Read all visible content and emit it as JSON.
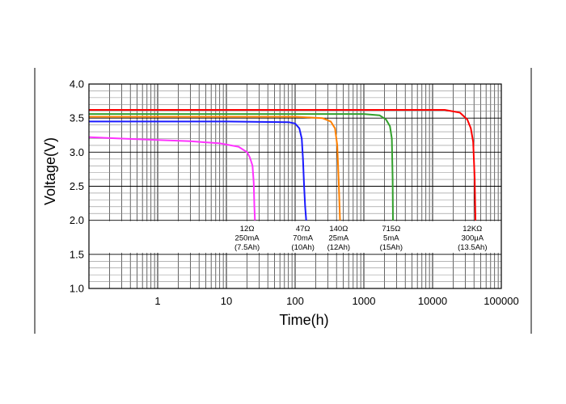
{
  "chart_data": {
    "type": "line",
    "title": "",
    "xlabel": "Time(h)",
    "ylabel": "Voltage(V)",
    "xscale": "log",
    "xlim": [
      0.1,
      100000
    ],
    "ylim": [
      1.0,
      4.0
    ],
    "xticks": [
      1,
      10,
      100,
      1000,
      10000,
      100000
    ],
    "xtick_labels": [
      "1",
      "10",
      "100",
      "1000",
      "10000",
      "100000"
    ],
    "yticks": [
      1.0,
      1.5,
      2.0,
      2.5,
      3.0,
      3.5,
      4.0
    ],
    "ytick_labels": [
      "1.0",
      "1.5",
      "2.0",
      "2.5",
      "3.0",
      "3.5",
      "4.0"
    ],
    "grid": true,
    "legend": "none",
    "series": [
      {
        "color": "#ff33ff",
        "annotation": [
          "12Ω",
          "250mA",
          "(7.5Ah)"
        ],
        "x": [
          0.1,
          0.3,
          1,
          3,
          8,
          15,
          20,
          22,
          24,
          25,
          25.5,
          26
        ],
        "y": [
          3.22,
          3.2,
          3.18,
          3.16,
          3.13,
          3.08,
          3.0,
          2.92,
          2.8,
          2.55,
          2.2,
          2.0
        ]
      },
      {
        "color": "#1a1aff",
        "annotation": [
          "47Ω",
          "70mA",
          "(10Ah)"
        ],
        "x": [
          0.1,
          10,
          80,
          100,
          115,
          125,
          130,
          135,
          140,
          145
        ],
        "y": [
          3.45,
          3.45,
          3.44,
          3.42,
          3.35,
          3.2,
          2.9,
          2.5,
          2.2,
          2.0
        ]
      },
      {
        "color": "#ff8000",
        "annotation": [
          "140Ω",
          "25mA",
          "(12Ah)"
        ],
        "x": [
          0.1,
          100,
          250,
          330,
          380,
          410,
          430,
          450
        ],
        "y": [
          3.52,
          3.52,
          3.5,
          3.45,
          3.35,
          3.1,
          2.6,
          2.0
        ]
      },
      {
        "color": "#33a02c",
        "annotation": [
          "715Ω",
          "5mA",
          "(15Ah)"
        ],
        "x": [
          0.1,
          1000,
          1700,
          2100,
          2400,
          2550,
          2620,
          2650
        ],
        "y": [
          3.56,
          3.56,
          3.54,
          3.48,
          3.38,
          3.2,
          2.6,
          2.0
        ]
      },
      {
        "color": "#ff0000",
        "annotation": [
          "12KΩ",
          "300μA",
          "(13.5Ah)"
        ],
        "x": [
          0.1,
          15000,
          25000,
          32000,
          36000,
          39000,
          41000,
          42000
        ],
        "y": [
          3.62,
          3.62,
          3.58,
          3.48,
          3.35,
          3.15,
          2.6,
          2.0
        ]
      }
    ]
  }
}
